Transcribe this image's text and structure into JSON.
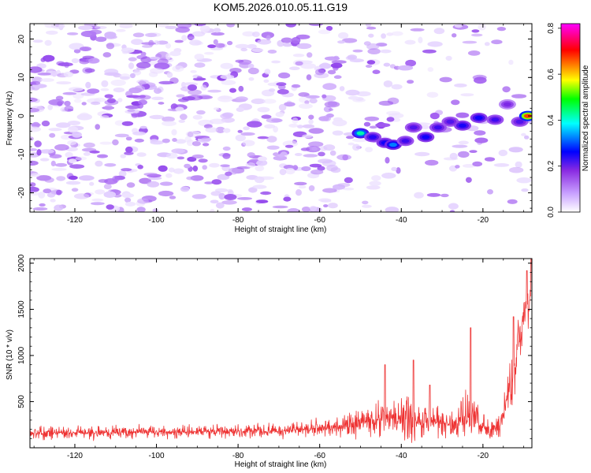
{
  "title": "KOM5.2026.010.05.11.G19",
  "chart_data": [
    {
      "type": "heatmap",
      "name": "spectrogram",
      "xlabel": "Height of straight line (km)",
      "ylabel": "Frequency (Hz)",
      "xlim": [
        -131,
        -8
      ],
      "ylim": [
        -25,
        24
      ],
      "xticks": [
        -120,
        -100,
        -80,
        -60,
        -40,
        -20
      ],
      "yticks": [
        -20,
        -10,
        0,
        10,
        20
      ],
      "noise_amplitude_range": [
        0.02,
        0.12
      ],
      "signal_ridge": [
        {
          "x": -50,
          "y": -4.5,
          "a": 0.45
        },
        {
          "x": -47,
          "y": -5.5,
          "a": 0.25
        },
        {
          "x": -44,
          "y": -7,
          "a": 0.28
        },
        {
          "x": -42,
          "y": -7.5,
          "a": 0.35
        },
        {
          "x": -39,
          "y": -6.5,
          "a": 0.22
        },
        {
          "x": -37,
          "y": -3,
          "a": 0.2
        },
        {
          "x": -34,
          "y": -5.5,
          "a": 0.28
        },
        {
          "x": -31,
          "y": -3,
          "a": 0.22
        },
        {
          "x": -28,
          "y": -1.5,
          "a": 0.2
        },
        {
          "x": -25,
          "y": -2.5,
          "a": 0.27
        },
        {
          "x": -21,
          "y": -0.5,
          "a": 0.28
        },
        {
          "x": -17,
          "y": -1,
          "a": 0.22
        },
        {
          "x": -14,
          "y": 3,
          "a": 0.15
        },
        {
          "x": -11,
          "y": -1.5,
          "a": 0.2
        },
        {
          "x": -9,
          "y": 0,
          "a": 0.7
        }
      ],
      "colorbar": {
        "label": "Normalized spectral amplitude",
        "range": [
          0,
          0.82
        ],
        "ticks": [
          "0.0",
          "0.2",
          "0.4",
          "0.6",
          "0.8"
        ],
        "colors": [
          "#ffffff",
          "#8a2be2",
          "#0000ff",
          "#00ffff",
          "#00ff00",
          "#ffff00",
          "#ff7f00",
          "#ff0000",
          "#ff00ff"
        ]
      }
    },
    {
      "type": "line",
      "name": "snr",
      "xlabel": "Height of straight line (km)",
      "ylabel": "SNR (10 * v/v)",
      "xlim": [
        -131,
        -8
      ],
      "ylim": [
        0,
        2050
      ],
      "xticks": [
        -120,
        -100,
        -80,
        -60,
        -40,
        -20
      ],
      "yticks": [
        500,
        1000,
        1500,
        2000
      ],
      "line_color": "#ee3333",
      "trend": [
        {
          "x": -131,
          "base": 160,
          "spread": 90
        },
        {
          "x": -100,
          "base": 170,
          "spread": 90
        },
        {
          "x": -70,
          "base": 180,
          "spread": 100
        },
        {
          "x": -55,
          "base": 230,
          "spread": 130
        },
        {
          "x": -45,
          "base": 320,
          "spread": 260
        },
        {
          "x": -38,
          "base": 310,
          "spread": 300
        },
        {
          "x": -33,
          "base": 300,
          "spread": 250
        },
        {
          "x": -27,
          "base": 250,
          "spread": 180
        },
        {
          "x": -23,
          "base": 380,
          "spread": 400
        },
        {
          "x": -20,
          "base": 220,
          "spread": 150
        },
        {
          "x": -16,
          "base": 200,
          "spread": 140
        },
        {
          "x": -13,
          "base": 700,
          "spread": 500
        },
        {
          "x": -11,
          "base": 1300,
          "spread": 400
        },
        {
          "x": -8,
          "base": 1700,
          "spread": 450
        }
      ],
      "peaks": [
        {
          "x": -44,
          "y": 900
        },
        {
          "x": -37,
          "y": 950
        },
        {
          "x": -33,
          "y": 680
        },
        {
          "x": -23,
          "y": 1300
        },
        {
          "x": -12.5,
          "y": 1420
        },
        {
          "x": -9.2,
          "y": 1920
        },
        {
          "x": -8.2,
          "y": 2050
        }
      ]
    }
  ]
}
